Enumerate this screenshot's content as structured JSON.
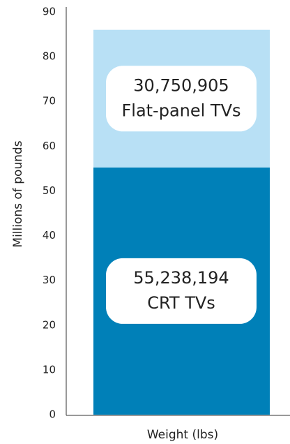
{
  "chart_data": {
    "type": "stacked-bar",
    "categories": [
      "Weight (lbs)"
    ],
    "ylabel": "Millions of pounds",
    "series": [
      {
        "name": "CRT TVs",
        "color": "#0080b8",
        "values": [
          55.238194
        ],
        "value_labels": [
          "55,238,194"
        ]
      },
      {
        "name": "Flat-panel TVs",
        "color": "#b8e0f5",
        "values": [
          30.750905
        ],
        "value_labels": [
          "30,750,905"
        ]
      }
    ],
    "ylim": [
      0,
      90
    ],
    "yticks": [
      0,
      10,
      20,
      30,
      40,
      50,
      60,
      70,
      80,
      90
    ],
    "grid": false
  }
}
